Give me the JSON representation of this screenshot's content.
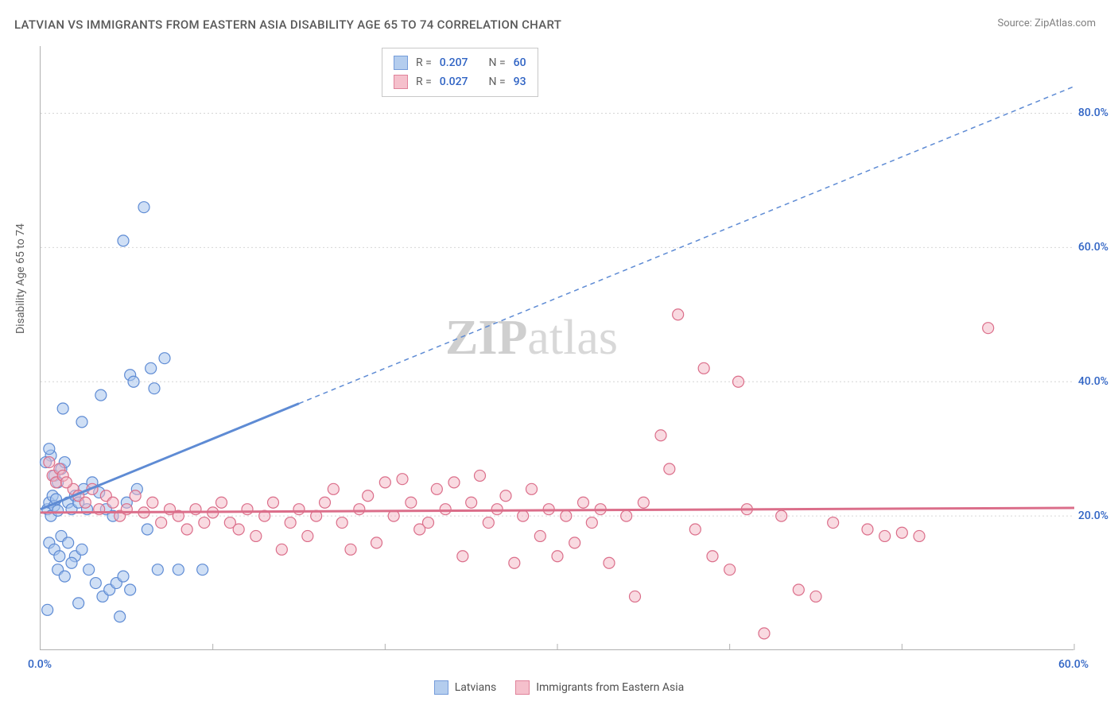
{
  "title": "LATVIAN VS IMMIGRANTS FROM EASTERN ASIA DISABILITY AGE 65 TO 74 CORRELATION CHART",
  "source": "Source: ZipAtlas.com",
  "ylabel": "Disability Age 65 to 74",
  "watermark_a": "ZIP",
  "watermark_b": "atlas",
  "chart": {
    "type": "scatter",
    "xlim": [
      0,
      60
    ],
    "ylim": [
      0,
      90
    ],
    "y_ticks": [
      20,
      40,
      60,
      80
    ],
    "y_tick_labels": [
      "20.0%",
      "40.0%",
      "60.0%",
      "80.0%"
    ],
    "x_ticks": [
      0,
      10,
      20,
      30,
      40,
      50,
      60
    ],
    "x_end_labels": [
      "0.0%",
      "60.0%"
    ],
    "grid_color": "#d6d6d6",
    "background_color": "#ffffff",
    "marker_radius": 7,
    "marker_stroke_width": 1.2,
    "series": [
      {
        "name": "Latvians",
        "fill": "#a8c5ec",
        "stroke": "#5e8bd4",
        "fill_opacity": 0.55,
        "R": "0.207",
        "N": "60",
        "trend": {
          "x1": 0,
          "y1": 21,
          "x2": 60,
          "y2": 84,
          "solid_until_x": 15
        },
        "points": [
          [
            0.4,
            21
          ],
          [
            0.5,
            22
          ],
          [
            0.6,
            20
          ],
          [
            0.7,
            23
          ],
          [
            0.8,
            21.5
          ],
          [
            0.9,
            22.5
          ],
          [
            1.0,
            20.8
          ],
          [
            0.8,
            26
          ],
          [
            1.0,
            25
          ],
          [
            1.2,
            27
          ],
          [
            1.4,
            28
          ],
          [
            0.6,
            29
          ],
          [
            0.3,
            28
          ],
          [
            0.5,
            30
          ],
          [
            1.6,
            22
          ],
          [
            1.8,
            21
          ],
          [
            2.0,
            23
          ],
          [
            2.2,
            22
          ],
          [
            2.5,
            24
          ],
          [
            2.7,
            21
          ],
          [
            3.0,
            25
          ],
          [
            3.4,
            23.5
          ],
          [
            3.8,
            21
          ],
          [
            4.2,
            20
          ],
          [
            5.0,
            22
          ],
          [
            5.6,
            24
          ],
          [
            6.2,
            18
          ],
          [
            6.8,
            12
          ],
          [
            1.2,
            17
          ],
          [
            1.6,
            16
          ],
          [
            2.0,
            14
          ],
          [
            2.4,
            15
          ],
          [
            2.8,
            12
          ],
          [
            3.2,
            10
          ],
          [
            3.6,
            8
          ],
          [
            4.0,
            9
          ],
          [
            4.4,
            10
          ],
          [
            4.8,
            11
          ],
          [
            5.2,
            9
          ],
          [
            1.0,
            12
          ],
          [
            1.4,
            11
          ],
          [
            1.8,
            13
          ],
          [
            0.5,
            16
          ],
          [
            0.8,
            15
          ],
          [
            1.1,
            14
          ],
          [
            0.4,
            6
          ],
          [
            2.2,
            7
          ],
          [
            4.6,
            5
          ],
          [
            1.3,
            36
          ],
          [
            2.4,
            34
          ],
          [
            3.5,
            38
          ],
          [
            5.2,
            41
          ],
          [
            6.4,
            42
          ],
          [
            7.2,
            43.5
          ],
          [
            6.0,
            66
          ],
          [
            4.8,
            61
          ],
          [
            5.4,
            40
          ],
          [
            6.6,
            39
          ],
          [
            8.0,
            12
          ],
          [
            9.4,
            12
          ]
        ]
      },
      {
        "name": "Immigrants from Eastern Asia",
        "fill": "#f4b6c4",
        "stroke": "#db6e8a",
        "fill_opacity": 0.5,
        "R": "0.027",
        "N": "93",
        "trend": {
          "x1": 0,
          "y1": 20.5,
          "x2": 60,
          "y2": 21.2,
          "solid_until_x": 60
        },
        "points": [
          [
            1.9,
            24
          ],
          [
            2.2,
            23
          ],
          [
            2.6,
            22
          ],
          [
            3.0,
            24
          ],
          [
            3.4,
            21
          ],
          [
            3.8,
            23
          ],
          [
            4.2,
            22
          ],
          [
            4.6,
            20
          ],
          [
            5.0,
            21
          ],
          [
            5.5,
            23
          ],
          [
            6.0,
            20.5
          ],
          [
            6.5,
            22
          ],
          [
            7.0,
            19
          ],
          [
            7.5,
            21
          ],
          [
            8.0,
            20
          ],
          [
            8.5,
            18
          ],
          [
            9.0,
            21
          ],
          [
            9.5,
            19
          ],
          [
            10.0,
            20.5
          ],
          [
            10.5,
            22
          ],
          [
            11.0,
            19
          ],
          [
            11.5,
            18
          ],
          [
            12.0,
            21
          ],
          [
            12.5,
            17
          ],
          [
            13.0,
            20
          ],
          [
            13.5,
            22
          ],
          [
            14.0,
            15
          ],
          [
            14.5,
            19
          ],
          [
            15.0,
            21
          ],
          [
            15.5,
            17
          ],
          [
            16.0,
            20
          ],
          [
            16.5,
            22
          ],
          [
            17.0,
            24
          ],
          [
            17.5,
            19
          ],
          [
            18.0,
            15
          ],
          [
            18.5,
            21
          ],
          [
            19.0,
            23
          ],
          [
            19.5,
            16
          ],
          [
            20.0,
            25
          ],
          [
            20.5,
            20
          ],
          [
            21.0,
            25.5
          ],
          [
            21.5,
            22
          ],
          [
            22.0,
            18
          ],
          [
            22.5,
            19
          ],
          [
            23.0,
            24
          ],
          [
            23.5,
            21
          ],
          [
            24.0,
            25
          ],
          [
            24.5,
            14
          ],
          [
            25.0,
            22
          ],
          [
            25.5,
            26
          ],
          [
            26.0,
            19
          ],
          [
            26.5,
            21
          ],
          [
            27.0,
            23
          ],
          [
            27.5,
            13
          ],
          [
            28.0,
            20
          ],
          [
            28.5,
            24
          ],
          [
            29.0,
            17
          ],
          [
            29.5,
            21
          ],
          [
            30.0,
            14
          ],
          [
            30.5,
            20
          ],
          [
            31.0,
            16
          ],
          [
            31.5,
            22
          ],
          [
            32.0,
            19
          ],
          [
            32.5,
            21
          ],
          [
            33.0,
            13
          ],
          [
            34.0,
            20
          ],
          [
            35.0,
            22
          ],
          [
            36.0,
            32
          ],
          [
            37.0,
            50
          ],
          [
            36.5,
            27
          ],
          [
            38.0,
            18
          ],
          [
            39.0,
            14
          ],
          [
            40.0,
            12
          ],
          [
            41.0,
            21
          ],
          [
            40.5,
            40
          ],
          [
            38.5,
            42
          ],
          [
            34.5,
            8
          ],
          [
            42.0,
            2.5
          ],
          [
            43.0,
            20
          ],
          [
            44.0,
            9
          ],
          [
            45.0,
            8
          ],
          [
            46.0,
            19
          ],
          [
            48.0,
            18
          ],
          [
            49.0,
            17
          ],
          [
            50.0,
            17.5
          ],
          [
            51.0,
            17
          ],
          [
            55.0,
            48
          ],
          [
            0.5,
            28
          ],
          [
            0.7,
            26
          ],
          [
            0.9,
            25
          ],
          [
            1.1,
            27
          ],
          [
            1.3,
            26
          ],
          [
            1.5,
            25
          ]
        ]
      }
    ]
  },
  "legend_top": {
    "rows": [
      {
        "series_idx": 0,
        "r_label": "R =",
        "n_label": "N ="
      },
      {
        "series_idx": 1,
        "r_label": "R =",
        "n_label": "N ="
      }
    ]
  },
  "legend_bottom": [
    {
      "series_idx": 0
    },
    {
      "series_idx": 1
    }
  ]
}
